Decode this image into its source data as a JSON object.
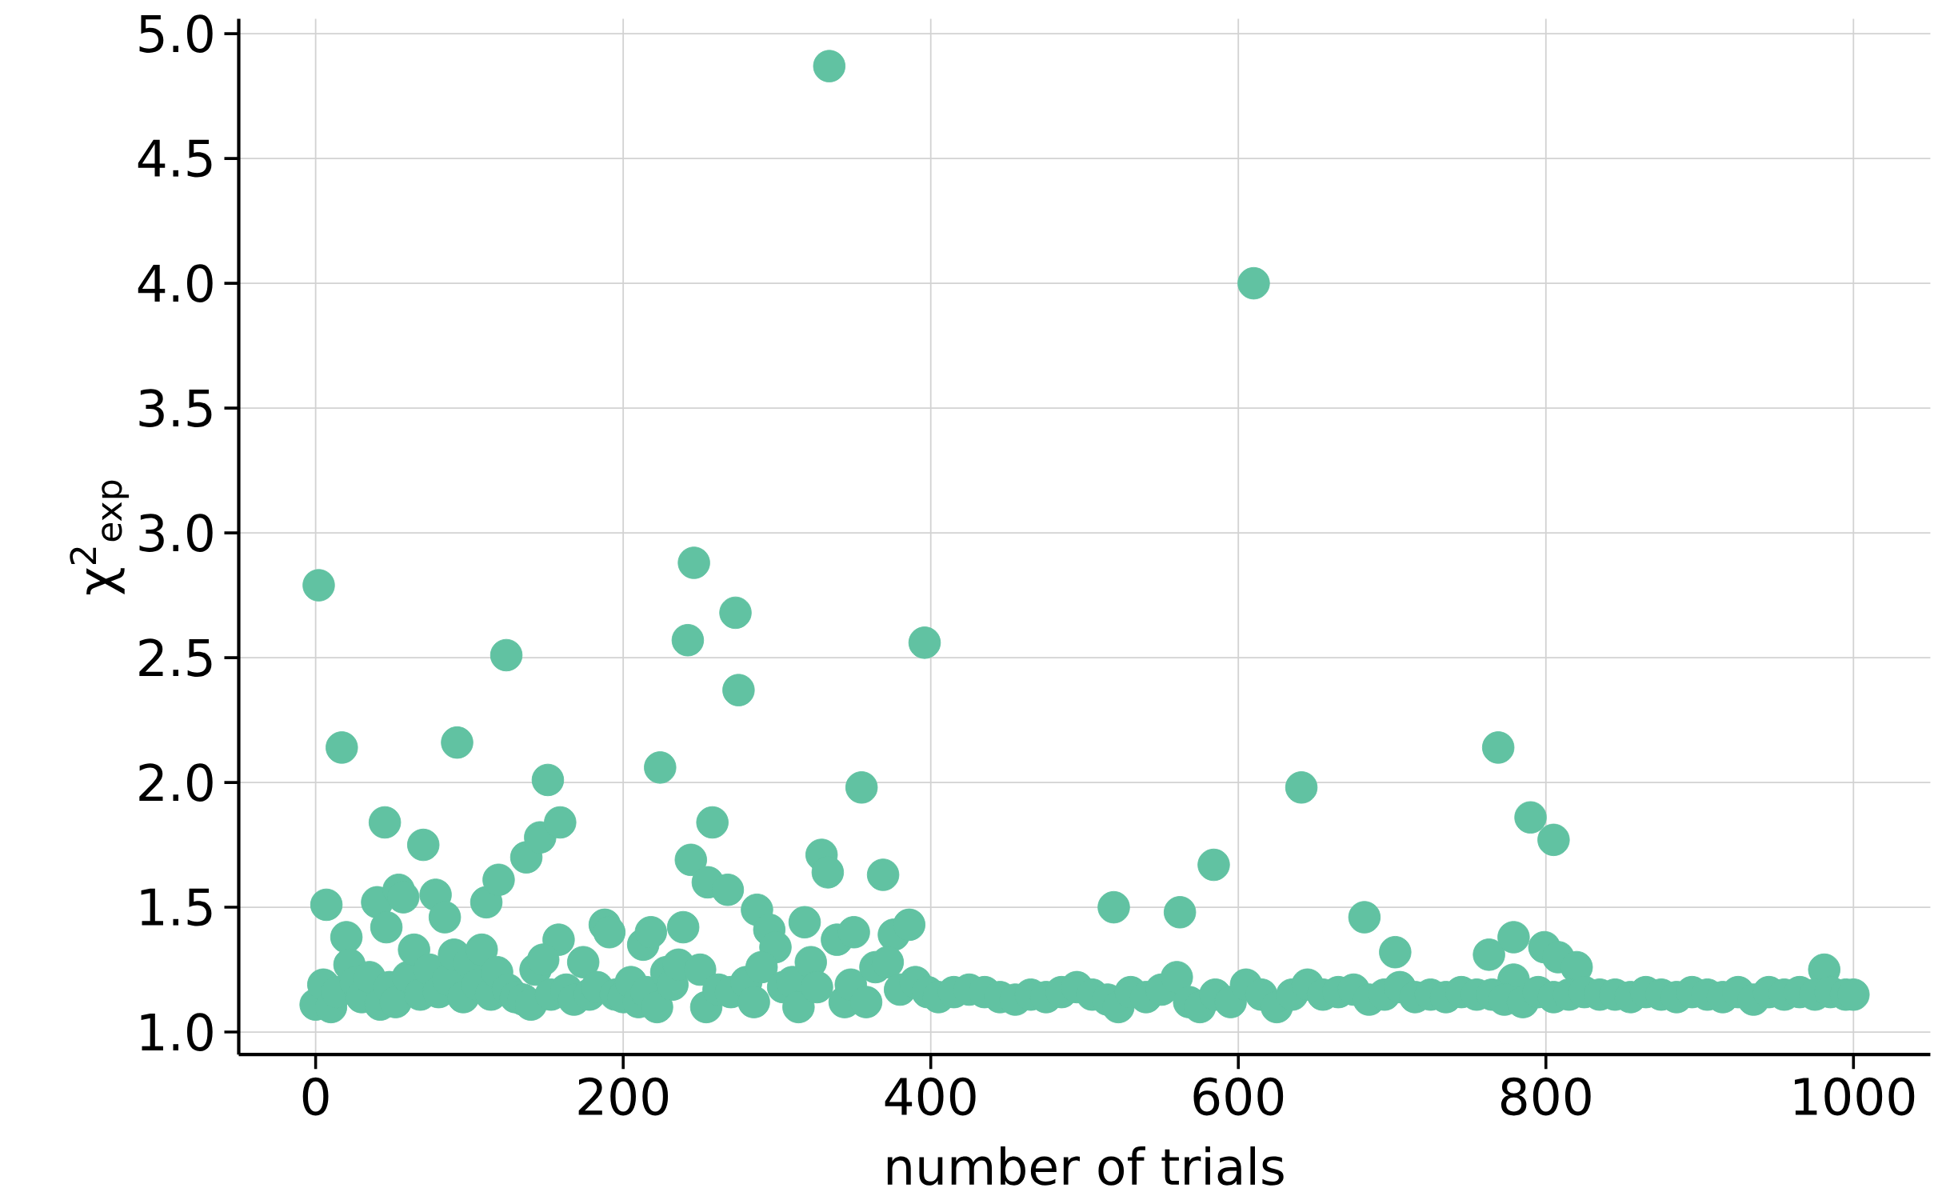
{
  "chart_data": {
    "type": "scatter",
    "xlabel": "number of trials",
    "ylabel": "χ$^{2}$$_{exp}$",
    "xlim": [
      -50,
      1050
    ],
    "ylim": [
      0.91,
      5.06
    ],
    "xticks": [
      0,
      200,
      400,
      600,
      800,
      1000
    ],
    "yticks": [
      {
        "value": 1.0,
        "label": "1.0"
      },
      {
        "value": 1.5,
        "label": "1.5"
      },
      {
        "value": 2.0,
        "label": "2.0"
      },
      {
        "value": 2.5,
        "label": "2.5"
      },
      {
        "value": 3.0,
        "label": "3.0"
      },
      {
        "value": 3.5,
        "label": "3.5"
      },
      {
        "value": 4.0,
        "label": "4.0"
      },
      {
        "value": 4.5,
        "label": "4.5"
      },
      {
        "value": 5.0,
        "label": "5.0"
      }
    ],
    "grid": true,
    "marker": "circle",
    "series": [
      {
        "color": "#61c2a2",
        "x": [
          2,
          7,
          17,
          20,
          45,
          40,
          46,
          54,
          57,
          70,
          78,
          84,
          92,
          111,
          119,
          124,
          137,
          146,
          151,
          159,
          158,
          174,
          188,
          191,
          213,
          218,
          224,
          239,
          242,
          244,
          246,
          255,
          258,
          268,
          273,
          275,
          287,
          295,
          299,
          318,
          329,
          333,
          334,
          339,
          350,
          355,
          369,
          376,
          386,
          396,
          519,
          562,
          584,
          610,
          641,
          682,
          702,
          763,
          769,
          779,
          779,
          790,
          799,
          805,
          808,
          820,
          981,
          0,
          5,
          10,
          14,
          22,
          26,
          30,
          35,
          42,
          48,
          52,
          60,
          64,
          68,
          74,
          80,
          86,
          90,
          96,
          100,
          105,
          108,
          114,
          118,
          125,
          130,
          135,
          140,
          143,
          148,
          153,
          163,
          168,
          178,
          183,
          195,
          200,
          205,
          210,
          215,
          222,
          228,
          232,
          236,
          250,
          254,
          262,
          270,
          280,
          285,
          290,
          304,
          310,
          314,
          322,
          326,
          344,
          348,
          358,
          364,
          372,
          380,
          390,
          398,
          405,
          415,
          425,
          435,
          445,
          455,
          465,
          475,
          485,
          495,
          505,
          515,
          522,
          530,
          540,
          550,
          560,
          568,
          575,
          585,
          595,
          605,
          615,
          625,
          635,
          645,
          655,
          665,
          675,
          685,
          695,
          705,
          715,
          725,
          735,
          745,
          755,
          765,
          773,
          785,
          795,
          805,
          815,
          825,
          835,
          845,
          855,
          865,
          875,
          885,
          895,
          905,
          915,
          925,
          935,
          945,
          955,
          965,
          975,
          985,
          995,
          1000
        ],
        "values": [
          2.79,
          1.51,
          2.14,
          1.38,
          1.84,
          1.52,
          1.42,
          1.57,
          1.54,
          1.75,
          1.55,
          1.46,
          2.16,
          1.52,
          1.61,
          2.51,
          1.7,
          1.78,
          2.01,
          1.84,
          1.37,
          1.28,
          1.43,
          1.4,
          1.35,
          1.4,
          2.06,
          1.42,
          2.57,
          1.69,
          2.88,
          1.6,
          1.84,
          1.57,
          2.68,
          2.37,
          1.49,
          1.41,
          1.34,
          1.44,
          1.71,
          1.64,
          4.87,
          1.37,
          1.4,
          1.98,
          1.63,
          1.39,
          1.43,
          2.56,
          1.5,
          1.48,
          1.67,
          4.0,
          1.98,
          1.46,
          1.32,
          1.31,
          2.14,
          1.21,
          1.38,
          1.86,
          1.34,
          1.77,
          1.3,
          1.26,
          1.25,
          1.11,
          1.19,
          1.1,
          1.16,
          1.27,
          1.2,
          1.14,
          1.22,
          1.11,
          1.18,
          1.12,
          1.22,
          1.33,
          1.15,
          1.25,
          1.16,
          1.21,
          1.31,
          1.14,
          1.28,
          1.19,
          1.33,
          1.15,
          1.24,
          1.17,
          1.14,
          1.13,
          1.11,
          1.25,
          1.29,
          1.15,
          1.17,
          1.13,
          1.15,
          1.18,
          1.15,
          1.14,
          1.2,
          1.12,
          1.16,
          1.1,
          1.24,
          1.19,
          1.27,
          1.25,
          1.1,
          1.17,
          1.16,
          1.2,
          1.12,
          1.26,
          1.18,
          1.2,
          1.1,
          1.28,
          1.18,
          1.12,
          1.19,
          1.12,
          1.26,
          1.28,
          1.17,
          1.2,
          1.16,
          1.14,
          1.16,
          1.17,
          1.16,
          1.14,
          1.13,
          1.15,
          1.14,
          1.16,
          1.18,
          1.15,
          1.13,
          1.1,
          1.16,
          1.14,
          1.17,
          1.22,
          1.12,
          1.1,
          1.15,
          1.12,
          1.19,
          1.15,
          1.1,
          1.15,
          1.19,
          1.15,
          1.16,
          1.17,
          1.13,
          1.15,
          1.18,
          1.14,
          1.15,
          1.14,
          1.16,
          1.15,
          1.15,
          1.13,
          1.12,
          1.16,
          1.14,
          1.15,
          1.16,
          1.15,
          1.15,
          1.14,
          1.16,
          1.15,
          1.14,
          1.16,
          1.15,
          1.14,
          1.16,
          1.13,
          1.16,
          1.15,
          1.16,
          1.15,
          1.16,
          1.15,
          1.15
        ]
      }
    ]
  }
}
